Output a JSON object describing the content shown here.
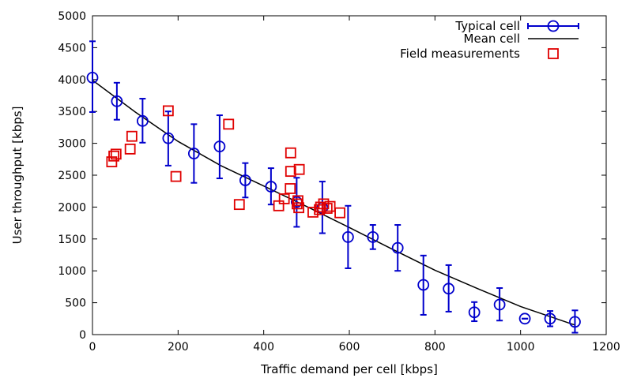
{
  "chart_data": {
    "type": "scatter",
    "xlabel": "Traffic demand per cell [kbps]",
    "ylabel": "User throughput [kbps]",
    "xlim": [
      0,
      1200
    ],
    "ylim": [
      0,
      5000
    ],
    "xticks": [
      0,
      200,
      400,
      600,
      800,
      1000,
      1200
    ],
    "yticks": [
      0,
      500,
      1000,
      1500,
      2000,
      2500,
      3000,
      3500,
      4000,
      4500,
      5000
    ],
    "grid": false,
    "legend_position": "top-right",
    "series": [
      {
        "name": "Typical cell",
        "style": "points-with-error-bars",
        "color": "#0000cc",
        "marker": "circle",
        "points": [
          {
            "x": 0,
            "y": 4030,
            "ylow": 3490,
            "yhigh": 4600
          },
          {
            "x": 57,
            "y": 3660,
            "ylow": 3370,
            "yhigh": 3950
          },
          {
            "x": 117,
            "y": 3350,
            "ylow": 3010,
            "yhigh": 3700
          },
          {
            "x": 177,
            "y": 3080,
            "ylow": 2650,
            "yhigh": 3500
          },
          {
            "x": 237,
            "y": 2840,
            "ylow": 2380,
            "yhigh": 3300
          },
          {
            "x": 297,
            "y": 2950,
            "ylow": 2450,
            "yhigh": 3440
          },
          {
            "x": 357,
            "y": 2420,
            "ylow": 2150,
            "yhigh": 2690
          },
          {
            "x": 417,
            "y": 2320,
            "ylow": 2040,
            "yhigh": 2610
          },
          {
            "x": 477,
            "y": 2080,
            "ylow": 1690,
            "yhigh": 2460
          },
          {
            "x": 537,
            "y": 1990,
            "ylow": 1590,
            "yhigh": 2400
          },
          {
            "x": 597,
            "y": 1530,
            "ylow": 1040,
            "yhigh": 2020
          },
          {
            "x": 655,
            "y": 1530,
            "ylow": 1340,
            "yhigh": 1720
          },
          {
            "x": 713,
            "y": 1360,
            "ylow": 1000,
            "yhigh": 1720
          },
          {
            "x": 773,
            "y": 780,
            "ylow": 310,
            "yhigh": 1240
          },
          {
            "x": 832,
            "y": 720,
            "ylow": 360,
            "yhigh": 1090
          },
          {
            "x": 892,
            "y": 350,
            "ylow": 210,
            "yhigh": 510
          },
          {
            "x": 951,
            "y": 470,
            "ylow": 220,
            "yhigh": 730
          },
          {
            "x": 1010,
            "y": 250,
            "ylow": 250,
            "yhigh": 250
          },
          {
            "x": 1069,
            "y": 250,
            "ylow": 130,
            "yhigh": 370
          },
          {
            "x": 1127,
            "y": 200,
            "ylow": 30,
            "yhigh": 380
          }
        ]
      },
      {
        "name": "Mean cell",
        "style": "line",
        "color": "#000000",
        "points": [
          {
            "x": 0,
            "y": 3990
          },
          {
            "x": 100,
            "y": 3490
          },
          {
            "x": 200,
            "y": 3030
          },
          {
            "x": 300,
            "y": 2650
          },
          {
            "x": 400,
            "y": 2330
          },
          {
            "x": 500,
            "y": 2010
          },
          {
            "x": 600,
            "y": 1680
          },
          {
            "x": 700,
            "y": 1340
          },
          {
            "x": 800,
            "y": 1010
          },
          {
            "x": 900,
            "y": 720
          },
          {
            "x": 1000,
            "y": 440
          },
          {
            "x": 1127,
            "y": 150
          }
        ]
      },
      {
        "name": "Field measurements",
        "style": "points",
        "color": "#e00000",
        "marker": "square",
        "points": [
          {
            "x": 45,
            "y": 2710
          },
          {
            "x": 50,
            "y": 2800
          },
          {
            "x": 55,
            "y": 2830
          },
          {
            "x": 88,
            "y": 2910
          },
          {
            "x": 92,
            "y": 3110
          },
          {
            "x": 177,
            "y": 3510
          },
          {
            "x": 195,
            "y": 2480
          },
          {
            "x": 318,
            "y": 3300
          },
          {
            "x": 343,
            "y": 2040
          },
          {
            "x": 435,
            "y": 2020
          },
          {
            "x": 448,
            "y": 2130
          },
          {
            "x": 462,
            "y": 2290
          },
          {
            "x": 463,
            "y": 2560
          },
          {
            "x": 463,
            "y": 2850
          },
          {
            "x": 478,
            "y": 2050
          },
          {
            "x": 480,
            "y": 2100
          },
          {
            "x": 482,
            "y": 1990
          },
          {
            "x": 483,
            "y": 2590
          },
          {
            "x": 515,
            "y": 1920
          },
          {
            "x": 530,
            "y": 1960
          },
          {
            "x": 533,
            "y": 2000
          },
          {
            "x": 540,
            "y": 2050
          },
          {
            "x": 548,
            "y": 1980
          },
          {
            "x": 555,
            "y": 2010
          },
          {
            "x": 578,
            "y": 1910
          }
        ]
      }
    ]
  }
}
